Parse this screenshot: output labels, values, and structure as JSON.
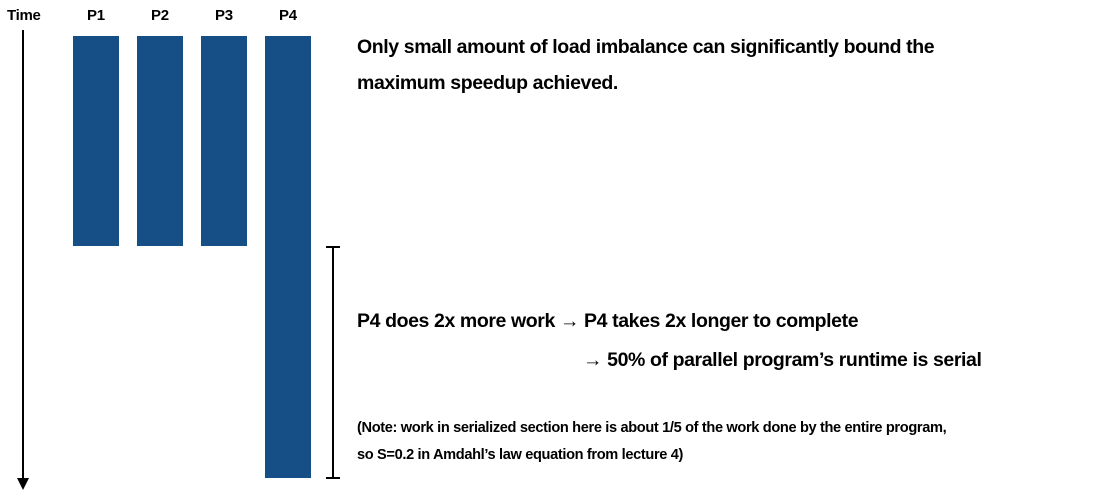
{
  "time_label": "Time",
  "processors": [
    "P1",
    "P2",
    "P3",
    "P4"
  ],
  "heading": {
    "line1": "Only small amount of load imbalance can significantly bound the",
    "line2": "maximum speedup achieved."
  },
  "statement": {
    "line1": "P4 does 2x more work → P4 takes 2x longer to complete",
    "line2": "→ 50% of parallel program’s runtime is serial"
  },
  "note": {
    "line1": "(Note: work in serialized section here is about 1/5 of the work done by the entire program,",
    "line2": "so S=0.2 in Amdahl’s law equation from lecture 4)"
  }
}
